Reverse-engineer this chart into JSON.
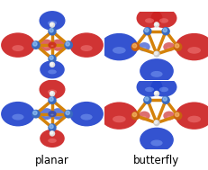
{
  "background_color": "#ffffff",
  "label_left": "planar",
  "label_right": "butterfly",
  "label_fontsize": 8.5,
  "figsize": [
    2.32,
    1.89
  ],
  "dpi": 100,
  "bond_color": "#d4820a",
  "panels": {
    "tl": {
      "type": "planar",
      "lobes": [
        "red",
        "red",
        "blue",
        "blue"
      ],
      "center_color": "red",
      "atom_top": "blue",
      "atom_side": "blue",
      "atom_bot": "white"
    },
    "tr": {
      "type": "butterfly",
      "lobes": [
        "blue",
        "red",
        "blue",
        "red"
      ],
      "top_color": "blue",
      "side_color": "red",
      "bot_color": "blue"
    },
    "bl": {
      "type": "planar",
      "lobes": [
        "blue",
        "blue",
        "red",
        "red"
      ],
      "center_color": "blue",
      "atom_top": "blue",
      "atom_side": "blue",
      "atom_bot": "white"
    },
    "br": {
      "type": "butterfly",
      "lobes": [
        "red",
        "blue",
        "red",
        "blue"
      ],
      "top_color": "red",
      "side_color": "blue",
      "bot_color": "red"
    }
  }
}
